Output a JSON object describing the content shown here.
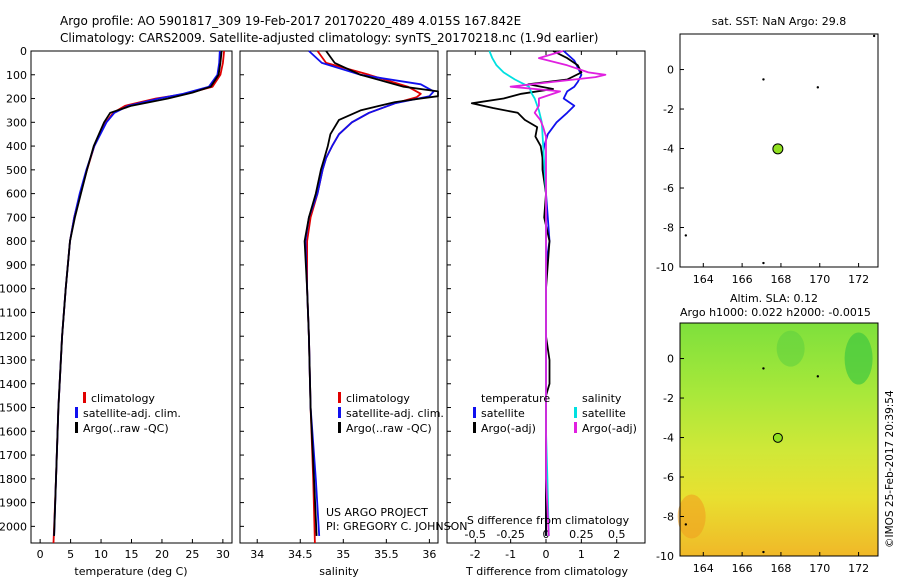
{
  "header": {
    "line1": "Argo profile: AO 5901817_309 19-Feb-2017 20170220_489 4.015S 167.842E",
    "line2": "Climatology: CARS2009. Satellite-adjusted climatology: synTS_20170218.nc (1.9d earlier)"
  },
  "credits": {
    "project": "US ARGO PROJECT",
    "pi": "PI: GREGORY C. JOHNSON",
    "stamp": "©IMOS 25-Feb-2017 20:39:54"
  },
  "colors": {
    "climatology": "#e00000",
    "satellite": "#1010ee",
    "argo": "#000000",
    "sal_satellite": "#00e0e0",
    "sal_argo": "#e020e0",
    "marker": "#90e020"
  },
  "chart_data": [
    {
      "type": "line",
      "title": "",
      "xlabel": "temperature (deg C)",
      "ylabel": "",
      "xlim": [
        -1.5,
        31.5
      ],
      "ylim": [
        2070,
        0
      ],
      "xticks": [
        0,
        5,
        10,
        15,
        20,
        25,
        30
      ],
      "yticks": [
        0,
        100,
        200,
        300,
        400,
        500,
        600,
        700,
        800,
        900,
        1000,
        1100,
        1200,
        1300,
        1400,
        1500,
        1600,
        1700,
        1800,
        1900,
        2000
      ],
      "legend": [
        "climatology",
        "satellite-adj. clim.",
        "Argo(..raw -QC)"
      ],
      "series": [
        {
          "name": "climatology",
          "color": "#e00000",
          "depth": [
            0,
            50,
            100,
            150,
            180,
            200,
            230,
            260,
            300,
            400,
            500,
            600,
            700,
            800,
            1000,
            1200,
            1500,
            1800,
            2070
          ],
          "values": [
            30.2,
            30,
            29.6,
            28.3,
            24,
            19,
            14,
            12,
            10.8,
            8.9,
            7.7,
            6.6,
            5.6,
            4.9,
            4.2,
            3.6,
            3.0,
            2.6,
            2.2
          ]
        },
        {
          "name": "satellite-adj. clim.",
          "color": "#1010ee",
          "depth": [
            0,
            50,
            100,
            150,
            180,
            200,
            230,
            260,
            300,
            400,
            500,
            600,
            700,
            800,
            1000,
            1200,
            1500,
            1800,
            2040
          ],
          "values": [
            29.5,
            29.4,
            29.1,
            27.7,
            23.5,
            19.5,
            14.5,
            12.2,
            10.9,
            8.9,
            7.6,
            6.5,
            5.6,
            4.9,
            4.2,
            3.6,
            3.0,
            2.6,
            2.3
          ]
        },
        {
          "name": "Argo(..raw -QC)",
          "color": "#000000",
          "depth": [
            0,
            50,
            100,
            150,
            175,
            200,
            230,
            260,
            300,
            400,
            500,
            600,
            700,
            800,
            1000,
            1200,
            1500,
            1800,
            2040
          ],
          "values": [
            29.8,
            29.6,
            29.3,
            28,
            25,
            21,
            15,
            11.5,
            10.5,
            8.8,
            7.7,
            6.7,
            5.7,
            4.9,
            4.2,
            3.6,
            3.0,
            2.6,
            2.3
          ]
        }
      ]
    },
    {
      "type": "line",
      "xlabel": "salinity",
      "xlim": [
        33.8,
        36.1
      ],
      "ylim": [
        2070,
        0
      ],
      "xticks": [
        34,
        34.5,
        35,
        35.5,
        36
      ],
      "xticklabels": [
        "34",
        "34.5",
        "35",
        "35.5",
        "36"
      ],
      "legend": [
        "climatology",
        "satellite-adj. clim.",
        "Argo(..raw -QC)"
      ],
      "series": [
        {
          "name": "climatology",
          "color": "#e00000",
          "depth": [
            0,
            50,
            100,
            150,
            180,
            195,
            220,
            260,
            300,
            350,
            400,
            450,
            500,
            600,
            700,
            800,
            1000,
            1200,
            1500,
            1800,
            2070
          ],
          "values": [
            34.7,
            34.8,
            35.3,
            35.75,
            35.9,
            35.85,
            35.6,
            35.3,
            35.1,
            34.95,
            34.87,
            34.8,
            34.76,
            34.7,
            34.62,
            34.58,
            34.58,
            34.6,
            34.62,
            34.65,
            34.67
          ]
        },
        {
          "name": "satellite-adj. clim.",
          "color": "#1010ee",
          "depth": [
            0,
            50,
            100,
            140,
            170,
            190,
            220,
            260,
            300,
            350,
            400,
            450,
            500,
            600,
            700,
            800,
            1000,
            1200,
            1500,
            1800,
            2040
          ],
          "values": [
            34.6,
            34.75,
            35.2,
            35.9,
            36.05,
            36.0,
            35.6,
            35.3,
            35.1,
            34.95,
            34.87,
            34.8,
            34.76,
            34.7,
            34.6,
            34.56,
            34.58,
            34.6,
            34.62,
            34.68,
            34.72
          ]
        },
        {
          "name": "Argo(..raw -QC)",
          "color": "#000000",
          "depth": [
            0,
            50,
            100,
            150,
            170,
            190,
            200,
            215,
            250,
            290,
            350,
            400,
            450,
            500,
            600,
            700,
            800,
            1000,
            1200,
            1500,
            1800,
            2040
          ],
          "values": [
            34.8,
            34.9,
            35.2,
            35.7,
            36.1,
            36.1,
            35.9,
            35.6,
            35.2,
            34.95,
            34.85,
            34.82,
            34.78,
            34.74,
            34.68,
            34.6,
            34.55,
            34.58,
            34.6,
            34.62,
            34.66,
            34.69
          ]
        }
      ]
    },
    {
      "type": "line",
      "xlabel": "T difference from climatology",
      "top_label": "S difference from climatology",
      "ylim": [
        2070,
        0
      ],
      "t_xlim": [
        -2.8,
        2.8
      ],
      "t_xticks": [
        -2,
        -1,
        0,
        1,
        2
      ],
      "s_xlim": [
        -0.7,
        0.7
      ],
      "s_xticks": [
        -0.5,
        -0.25,
        0,
        0.25,
        0.5
      ],
      "s_xticklabels": [
        "-0.5",
        "-0.25",
        "0",
        "0.25",
        "0.5"
      ],
      "legend_left_title": "temperature",
      "legend_right_title": "salinity",
      "legend": [
        "satellite",
        "Argo(-adj)",
        "satellite",
        "Argo(-adj)"
      ],
      "series": [
        {
          "name": "temperature satellite",
          "color": "#1010ee",
          "depth": [
            0,
            40,
            70,
            100,
            130,
            150,
            170,
            200,
            230,
            260,
            300,
            350,
            400,
            450,
            500,
            600,
            700,
            800,
            900,
            1000,
            1200,
            1400,
            1600,
            1800,
            2040
          ],
          "values": [
            0.5,
            0.8,
            0.9,
            1.0,
            0.9,
            0.8,
            0.6,
            0.5,
            0.8,
            0.6,
            0.3,
            0.05,
            -0.05,
            -0.1,
            -0.05,
            0.0,
            0.05,
            0.1,
            0.0,
            0.0,
            0.0,
            0.0,
            0.0,
            0.0,
            0.0
          ]
        },
        {
          "name": "temperature Argo(-adj)",
          "color": "#000000",
          "depth": [
            0,
            30,
            60,
            90,
            120,
            140,
            160,
            180,
            200,
            220,
            240,
            260,
            290,
            320,
            360,
            400,
            450,
            500,
            600,
            700,
            800,
            1000,
            1200,
            1300,
            1400,
            1450,
            1500,
            1600,
            1800,
            2040
          ],
          "values": [
            0.2,
            0.6,
            0.9,
            1.0,
            0.6,
            -0.5,
            0.2,
            -0.7,
            -1.2,
            -2.1,
            -1.5,
            -0.8,
            -0.6,
            -0.25,
            -0.3,
            -0.15,
            -0.1,
            -0.1,
            0.0,
            -0.05,
            0.1,
            0.0,
            0.0,
            0.1,
            0.1,
            0.0,
            0.0,
            0.0,
            0.0,
            0.0
          ]
        },
        {
          "name": "salinity satellite",
          "color": "#00e0e0",
          "depth": [
            0,
            30,
            60,
            90,
            120,
            150,
            180,
            200,
            250,
            300,
            400,
            500,
            600,
            800,
            1000,
            1200,
            1400,
            1600,
            1800,
            2040
          ],
          "values": [
            -0.4,
            -0.38,
            -0.35,
            -0.3,
            -0.22,
            -0.12,
            -0.1,
            -0.08,
            -0.05,
            -0.03,
            -0.02,
            -0.01,
            0.0,
            0.0,
            0.0,
            0.0,
            0.0,
            0.0,
            0.01,
            0.02
          ]
        },
        {
          "name": "salinity Argo(-adj)",
          "color": "#e020e0",
          "depth": [
            0,
            30,
            60,
            90,
            100,
            110,
            130,
            150,
            170,
            200,
            230,
            260,
            290,
            320,
            360,
            400,
            500,
            600,
            800,
            1000,
            1200,
            1400,
            1600,
            1800,
            2040
          ],
          "values": [
            0.12,
            -0.05,
            0.15,
            0.3,
            0.42,
            0.35,
            0.05,
            -0.25,
            0.1,
            -0.05,
            -0.05,
            -0.08,
            -0.04,
            -0.02,
            0.0,
            0.0,
            0.0,
            0.0,
            0.0,
            0.0,
            0.0,
            0.0,
            0.0,
            0.0,
            0.02
          ]
        }
      ]
    },
    {
      "type": "scatter",
      "title": "sat. SST: NaN Argo: 29.8",
      "xlim": [
        162.8,
        173
      ],
      "ylim": [
        -10,
        1.8
      ],
      "xticks": [
        164,
        166,
        168,
        170,
        172
      ],
      "yticks": [
        0,
        -2,
        -4,
        -6,
        -8,
        -10
      ],
      "argo_position": {
        "x": 167.842,
        "y": -4.015
      },
      "dots": [
        {
          "x": 167.1,
          "y": -0.5
        },
        {
          "x": 169.9,
          "y": -0.9
        },
        {
          "x": 163.1,
          "y": -8.4
        },
        {
          "x": 167.1,
          "y": -9.8
        },
        {
          "x": 172.8,
          "y": 1.7
        }
      ]
    },
    {
      "type": "heatmap",
      "title_line1": "Altim. SLA: 0.12",
      "title_line2": "Argo h1000: 0.022 h2000: -0.0015",
      "xlim": [
        162.8,
        173
      ],
      "ylim": [
        -10,
        1.8
      ],
      "xticks": [
        164,
        166,
        168,
        170,
        172
      ],
      "yticks": [
        0,
        -2,
        -4,
        -6,
        -8,
        -10
      ],
      "argo_position": {
        "x": 167.842,
        "y": -4.015
      },
      "dots": [
        {
          "x": 167.1,
          "y": -0.5
        },
        {
          "x": 169.9,
          "y": -0.9
        },
        {
          "x": 163.1,
          "y": -8.4
        },
        {
          "x": 167.1,
          "y": -9.8
        }
      ]
    }
  ]
}
